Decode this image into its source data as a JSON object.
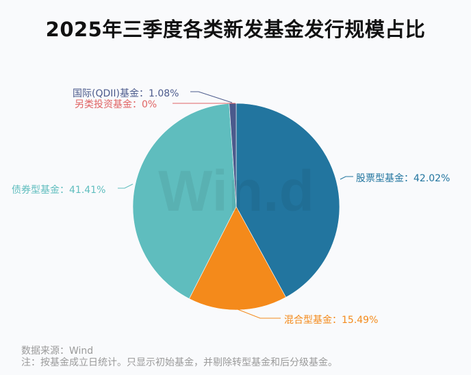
{
  "title": "2025年三季度各类新发基金发行规模占比",
  "chart_data": {
    "type": "pie",
    "title": "2025年三季度各类新发基金发行规模占比",
    "categories": [
      "股票型基金",
      "混合型基金",
      "债券型基金",
      "另类投资基金",
      "国际(QDII)基金"
    ],
    "values": [
      42.02,
      15.49,
      41.41,
      0,
      1.08
    ],
    "unit": "%",
    "colors": [
      "#22759f",
      "#f48a1b",
      "#5fbdbe",
      "#e06363",
      "#4b5a8c"
    ],
    "start_angle": "12 o'clock, clockwise",
    "legend": "none (outside labels with leader lines)"
  },
  "labels": {
    "stock": "股票型基金：42.02%",
    "mixed": "混合型基金：15.49%",
    "bond": "债券型基金：41.41%",
    "alt": "另类投资基金：0%",
    "qdii": "国际(QDII)基金：1.08%"
  },
  "watermark": "Win.d",
  "footer": {
    "source": "数据来源：Wind",
    "note": "注：按基金成立日统计。只显示初始基金，并剔除转型基金和后分级基金。"
  }
}
